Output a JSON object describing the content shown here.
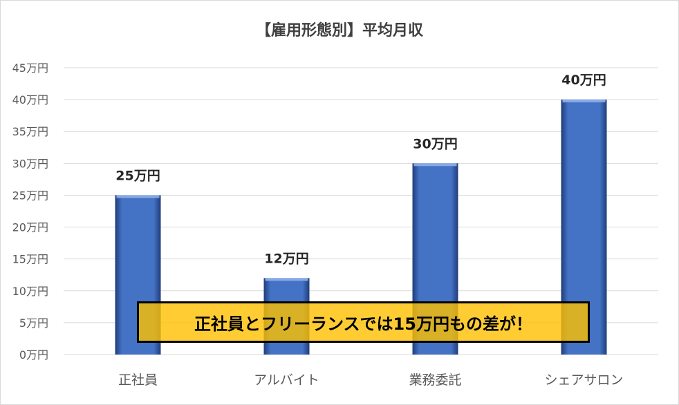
{
  "chart_data": {
    "type": "bar",
    "title": "【雇用形態別】平均月収",
    "categories": [
      "正社員",
      "アルバイト",
      "業務委託",
      "シェアサロン"
    ],
    "values": [
      25,
      12,
      30,
      40
    ],
    "data_labels": [
      "25万円",
      "12万円",
      "30万円",
      "40万円"
    ],
    "ylim": [
      0,
      45
    ],
    "yticks": [
      0,
      5,
      10,
      15,
      20,
      25,
      30,
      35,
      40,
      45
    ],
    "ytick_labels": [
      "0万円",
      "5万円",
      "10万円",
      "15万円",
      "20万円",
      "25万円",
      "30万円",
      "35万円",
      "40万円",
      "45万円"
    ],
    "grid": true,
    "legend": "none",
    "bar_color": "#4472c4",
    "annotation": "正社員とフリーランスでは15万円もの差が！"
  },
  "colors": {
    "callout_fill": "#ffc000",
    "callout_border": "#000000",
    "gridline": "#d9d9d9"
  }
}
